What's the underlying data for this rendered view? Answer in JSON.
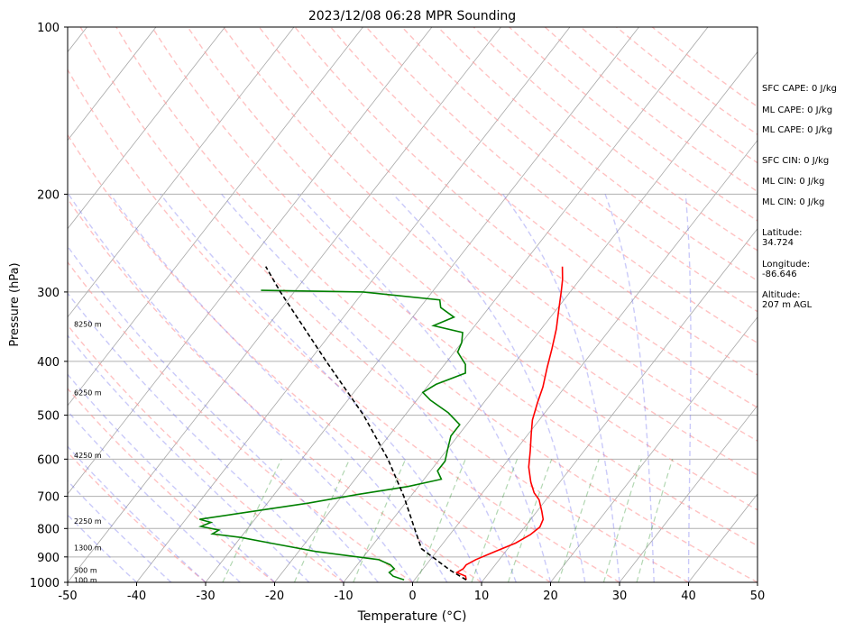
{
  "chart_data": {
    "type": "line",
    "title": "2023/12/08 06:28 MPR Sounding",
    "xlabel": "Temperature (°C)",
    "ylabel": "Pressure (hPa)",
    "xlim": [
      -50,
      50
    ],
    "ylim": [
      1000,
      100
    ],
    "y_scale": "log",
    "x_ticks": [
      "-50",
      "-40",
      "-30",
      "-20",
      "-10",
      "0",
      "10",
      "20",
      "30",
      "40",
      "50"
    ],
    "y_ticks": [
      "100",
      "200",
      "300",
      "400",
      "500",
      "600",
      "700",
      "800",
      "900",
      "1000"
    ],
    "grid": true,
    "height_labels": [
      {
        "text": "100 m",
        "p": 990
      },
      {
        "text": "500 m",
        "p": 950
      },
      {
        "text": "1300 m",
        "p": 866
      },
      {
        "text": "2250 m",
        "p": 775
      },
      {
        "text": "4250 m",
        "p": 590
      },
      {
        "text": "6250 m",
        "p": 455
      },
      {
        "text": "8250 m",
        "p": 343
      }
    ],
    "series": [
      {
        "kind": "temperature",
        "color": "#ff0000",
        "points": [
          {
            "p": 990,
            "t": 7.5
          },
          {
            "p": 975,
            "t": 7.0
          },
          {
            "p": 960,
            "t": 5.3
          },
          {
            "p": 945,
            "t": 5.8
          },
          {
            "p": 930,
            "t": 5.8
          },
          {
            "p": 910,
            "t": 6.6
          },
          {
            "p": 880,
            "t": 8.5
          },
          {
            "p": 850,
            "t": 10.5
          },
          {
            "p": 820,
            "t": 11.7
          },
          {
            "p": 795,
            "t": 12.2
          },
          {
            "p": 770,
            "t": 11.8
          },
          {
            "p": 745,
            "t": 10.7
          },
          {
            "p": 710,
            "t": 9.0
          },
          {
            "p": 690,
            "t": 7.5
          },
          {
            "p": 660,
            "t": 5.8
          },
          {
            "p": 620,
            "t": 3.8
          },
          {
            "p": 580,
            "t": 2.2
          },
          {
            "p": 540,
            "t": 0.4
          },
          {
            "p": 510,
            "t": -1.0
          },
          {
            "p": 475,
            "t": -2.2
          },
          {
            "p": 445,
            "t": -3.2
          },
          {
            "p": 410,
            "t": -4.8
          },
          {
            "p": 380,
            "t": -6.2
          },
          {
            "p": 350,
            "t": -7.8
          },
          {
            "p": 325,
            "t": -9.5
          },
          {
            "p": 300,
            "t": -11.3
          },
          {
            "p": 285,
            "t": -12.5
          },
          {
            "p": 270,
            "t": -14.0
          }
        ]
      },
      {
        "kind": "dewpoint",
        "color": "#008000",
        "points": [
          {
            "p": 990,
            "t": -1.5
          },
          {
            "p": 975,
            "t": -3.5
          },
          {
            "p": 960,
            "t": -4.5
          },
          {
            "p": 945,
            "t": -4.2
          },
          {
            "p": 930,
            "t": -5.2
          },
          {
            "p": 910,
            "t": -7.5
          },
          {
            "p": 880,
            "t": -17.5
          },
          {
            "p": 850,
            "t": -25.0
          },
          {
            "p": 830,
            "t": -30.0
          },
          {
            "p": 818,
            "t": -34.5
          },
          {
            "p": 805,
            "t": -34.0
          },
          {
            "p": 793,
            "t": -37.0
          },
          {
            "p": 780,
            "t": -36.0
          },
          {
            "p": 770,
            "t": -38.0
          },
          {
            "p": 748,
            "t": -32.0
          },
          {
            "p": 720,
            "t": -24.0
          },
          {
            "p": 695,
            "t": -18.0
          },
          {
            "p": 672,
            "t": -11.5
          },
          {
            "p": 652,
            "t": -7.5
          },
          {
            "p": 630,
            "t": -9.0
          },
          {
            "p": 605,
            "t": -9.0
          },
          {
            "p": 575,
            "t": -10.0
          },
          {
            "p": 545,
            "t": -11.0
          },
          {
            "p": 520,
            "t": -11.0
          },
          {
            "p": 495,
            "t": -14.0
          },
          {
            "p": 470,
            "t": -18.0
          },
          {
            "p": 455,
            "t": -20.0
          },
          {
            "p": 440,
            "t": -19.0
          },
          {
            "p": 420,
            "t": -16.0
          },
          {
            "p": 405,
            "t": -17.0
          },
          {
            "p": 385,
            "t": -19.5
          },
          {
            "p": 370,
            "t": -20.0
          },
          {
            "p": 355,
            "t": -21.0
          },
          {
            "p": 345,
            "t": -26.0
          },
          {
            "p": 333,
            "t": -24.0
          },
          {
            "p": 320,
            "t": -27.0
          },
          {
            "p": 310,
            "t": -28.0
          },
          {
            "p": 300,
            "t": -40.0
          },
          {
            "p": 298,
            "t": -55.0
          }
        ]
      },
      {
        "kind": "parcel",
        "color": "#000000",
        "points": [
          {
            "p": 990,
            "t": 7.5
          },
          {
            "p": 950,
            "t": 4.0
          },
          {
            "p": 900,
            "t": 0.0
          },
          {
            "p": 870,
            "t": -2.5
          },
          {
            "p": 800,
            "t": -5.8
          },
          {
            "p": 700,
            "t": -11.0
          },
          {
            "p": 600,
            "t": -17.5
          },
          {
            "p": 500,
            "t": -26.0
          },
          {
            "p": 400,
            "t": -37.5
          },
          {
            "p": 300,
            "t": -52.0
          },
          {
            "p": 270,
            "t": -57.0
          }
        ]
      }
    ]
  },
  "info": {
    "sfc_cape": "SFC CAPE: 0 J/kg",
    "ml_cape_1": "ML CAPE: 0 J/kg",
    "ml_cape_2": "ML CAPE: 0 J/kg",
    "sfc_cin": "SFC CIN: 0 J/kg",
    "ml_cin_1": "ML CIN: 0 J/kg",
    "ml_cin_2": "ML CIN: 0 J/kg",
    "latitude_label": "Latitude:",
    "latitude": "34.724",
    "longitude_label": "Longitude:",
    "longitude": "-86.646",
    "altitude_label": "Altitude:",
    "altitude": "207 m AGL"
  }
}
